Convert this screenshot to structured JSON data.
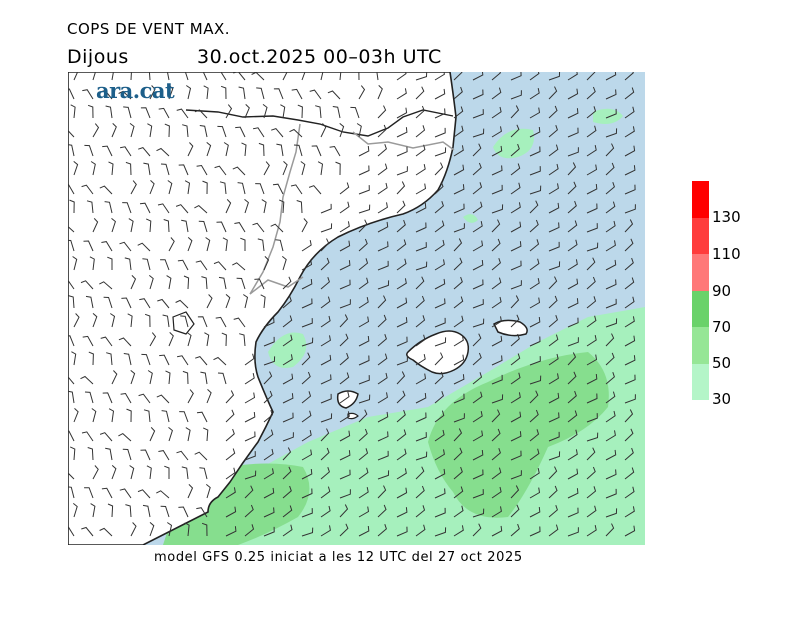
{
  "title": "COPS DE VENT MAX.",
  "day": "Dijous",
  "datetime": "30.oct.2025 00–03h UTC",
  "logo": "ara.cat",
  "footer": "model GFS 0.25 iniciat a les 12 UTC del 27 oct 2025",
  "legend": {
    "swatches": [
      {
        "color": "#ff0000"
      },
      {
        "color": "#ff3c3c"
      },
      {
        "color": "#ff7878"
      },
      {
        "color": "#6ad26a"
      },
      {
        "color": "#96e696"
      },
      {
        "color": "#b4f5c8"
      }
    ],
    "labels": [
      "130",
      "110",
      "90",
      "70",
      "50",
      "30"
    ]
  },
  "map": {
    "colors": {
      "sea": "#bcd8ea",
      "land": "#ffffff",
      "wind_30_50": "#a6f0bd",
      "wind_50_70": "#86de8e",
      "wind_70_90": "#6cc96c",
      "coast": "#222222",
      "border": "#9a9a9a",
      "barb": "#333333"
    }
  }
}
